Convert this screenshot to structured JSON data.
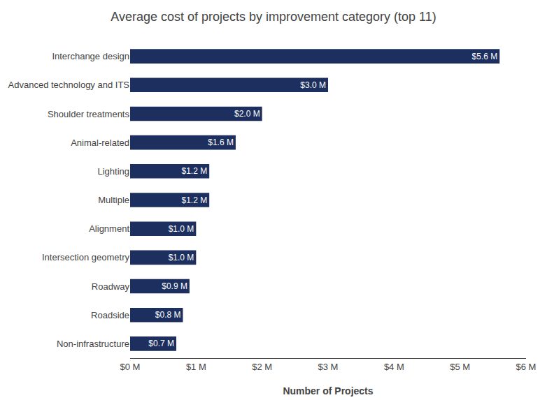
{
  "chart_data": {
    "type": "bar",
    "orientation": "horizontal",
    "title": "Average cost of projects by improvement category (top 11)",
    "categories": [
      "Non-infrastructure",
      "Roadside",
      "Roadway",
      "Intersection geometry",
      "Alignment",
      "Multiple",
      "Lighting",
      "Animal-related",
      "Shoulder treatments",
      "Advanced technology and ITS",
      "Interchange design"
    ],
    "values": [
      0.7,
      0.8,
      0.9,
      1.0,
      1.0,
      1.2,
      1.2,
      1.6,
      2.0,
      3.0,
      5.6
    ],
    "value_labels": [
      "$0.7 M",
      "$0.8 M",
      "$0.9 M",
      "$1.0 M",
      "$1.0 M",
      "$1.2 M",
      "$1.2 M",
      "$1.6 M",
      "$2.0 M",
      "$3.0 M",
      "$5.6 M"
    ],
    "data_labels": true,
    "color": "#1C2F5E",
    "xlabel": "Number of Projects",
    "xlim": [
      0,
      6
    ],
    "xticks": [
      {
        "value": 0,
        "label": "$0 M"
      },
      {
        "value": 1,
        "label": "$1 M"
      },
      {
        "value": 2,
        "label": "$2 M"
      },
      {
        "value": 3,
        "label": "$3 M"
      },
      {
        "value": 4,
        "label": "$4 M"
      },
      {
        "value": 5,
        "label": "$5 M"
      },
      {
        "value": 6,
        "label": "$6 M"
      }
    ],
    "grid": false
  }
}
